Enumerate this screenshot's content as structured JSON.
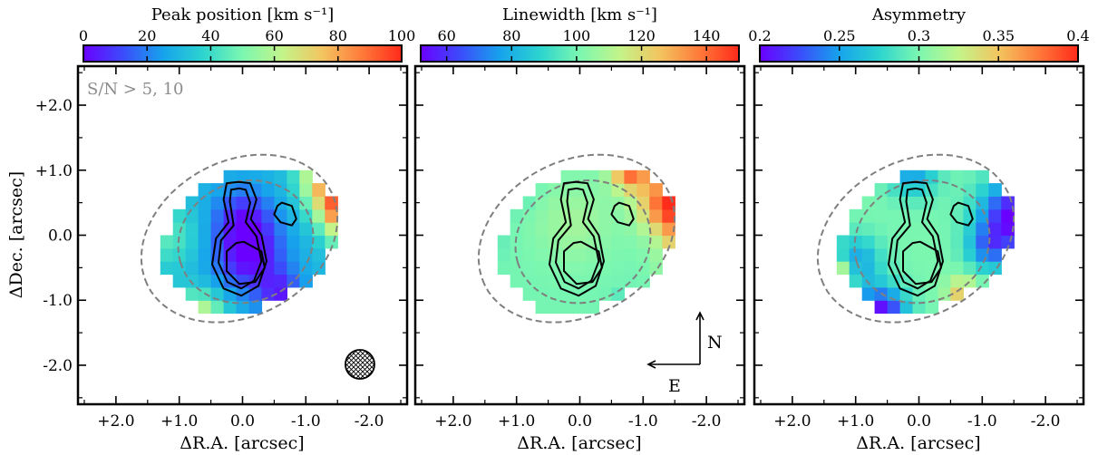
{
  "axes": {
    "xlabel": "ΔR.A. [arcsec]",
    "ylabel": "ΔDec. [arcsec]",
    "xticks": [
      {
        "value": 2.0,
        "label": "+2.0"
      },
      {
        "value": 1.0,
        "label": "+1.0"
      },
      {
        "value": 0.0,
        "label": "0.0"
      },
      {
        "value": -1.0,
        "label": "-1.0"
      },
      {
        "value": -2.0,
        "label": "-2.0"
      }
    ],
    "yticks": [
      {
        "value": 2.0,
        "label": "+2.0"
      },
      {
        "value": 1.0,
        "label": "+1.0"
      },
      {
        "value": 0.0,
        "label": "0.0"
      },
      {
        "value": -1.0,
        "label": "-1.0"
      },
      {
        "value": -2.0,
        "label": "-2.0"
      }
    ],
    "xlim": [
      2.6,
      -2.6
    ],
    "ylim": [
      -2.6,
      2.6
    ]
  },
  "annotation": "S/N > 5, 10",
  "compass": {
    "north": "N",
    "east": "E"
  },
  "beam": "hatched-circle-beam-icon",
  "chart_data": [
    {
      "type": "heatmap",
      "colorbar": {
        "label": "Peak position [km s⁻¹]",
        "range": [
          0,
          100
        ],
        "ticks": [
          0,
          20,
          40,
          60,
          80,
          100
        ],
        "tick_labels": [
          "0",
          "20",
          "40",
          "60",
          "80",
          "100"
        ]
      },
      "base": 30,
      "blobs": [
        {
          "x": 0.1,
          "y": -0.3,
          "s": 0.55,
          "a": -30
        },
        {
          "x": 0.2,
          "y": 0.3,
          "s": 0.45,
          "a": -20
        },
        {
          "x": -0.4,
          "y": -0.9,
          "s": 0.35,
          "a": -22
        },
        {
          "x": -1.8,
          "y": 0.2,
          "s": 0.5,
          "a": 75
        },
        {
          "x": -1.3,
          "y": 0.5,
          "s": 0.4,
          "a": 45
        },
        {
          "x": -1.0,
          "y": 0.9,
          "s": 0.35,
          "a": 35
        },
        {
          "x": 0.9,
          "y": -1.3,
          "s": 0.4,
          "a": 40
        },
        {
          "x": 1.4,
          "y": 0.0,
          "s": 0.5,
          "a": 15
        }
      ]
    },
    {
      "type": "heatmap",
      "colorbar": {
        "label": "Linewidth [km s⁻¹]",
        "range": [
          52,
          150
        ],
        "ticks": [
          60,
          80,
          100,
          120,
          140
        ],
        "tick_labels": [
          "60",
          "80",
          "100",
          "120",
          "140"
        ]
      },
      "base": 100,
      "blobs": [
        {
          "x": -1.8,
          "y": 0.1,
          "s": 0.45,
          "a": 60
        },
        {
          "x": -1.2,
          "y": 0.5,
          "s": 0.45,
          "a": 45
        },
        {
          "x": -0.6,
          "y": 1.0,
          "s": 0.3,
          "a": 40
        },
        {
          "x": -1.5,
          "y": -0.4,
          "s": 0.4,
          "a": 18
        },
        {
          "x": 2.0,
          "y": 0.0,
          "s": 0.4,
          "a": -22
        },
        {
          "x": 1.3,
          "y": 0.8,
          "s": 0.35,
          "a": -12
        },
        {
          "x": -0.6,
          "y": -1.2,
          "s": 0.25,
          "a": -30
        },
        {
          "x": 0.3,
          "y": 0.2,
          "s": 0.6,
          "a": 8
        }
      ]
    },
    {
      "type": "heatmap",
      "colorbar": {
        "label": "Asymmetry",
        "range": [
          0.2,
          0.4
        ],
        "ticks": [
          0.2,
          0.25,
          0.3,
          0.35,
          0.4
        ],
        "tick_labels": [
          "0.2",
          "0.25",
          "0.3",
          "0.35",
          "0.4"
        ]
      },
      "base": 0.3,
      "blobs": [
        {
          "x": -1.3,
          "y": 0.3,
          "s": 0.55,
          "a": -0.1
        },
        {
          "x": -0.9,
          "y": -0.2,
          "s": 0.35,
          "a": -0.05
        },
        {
          "x": 0.8,
          "y": -1.2,
          "s": 0.4,
          "a": -0.1
        },
        {
          "x": 1.2,
          "y": -0.4,
          "s": 0.4,
          "a": -0.05
        },
        {
          "x": 0.3,
          "y": 1.0,
          "s": 0.4,
          "a": -0.05
        },
        {
          "x": 1.5,
          "y": -0.6,
          "s": 0.25,
          "a": 0.07
        },
        {
          "x": -0.5,
          "y": -0.9,
          "s": 0.25,
          "a": 0.05
        }
      ]
    }
  ],
  "colors": {
    "colormap": [
      "#6a00ff",
      "#3b4cfb",
      "#16a3ec",
      "#2cd4cf",
      "#7cf7b0",
      "#c3f48a",
      "#f2c560",
      "#ff7a3a",
      "#ff2a1a"
    ],
    "contour": "#000000",
    "dashed": "#7f7f7f",
    "annotation": "#8c8c8c"
  }
}
